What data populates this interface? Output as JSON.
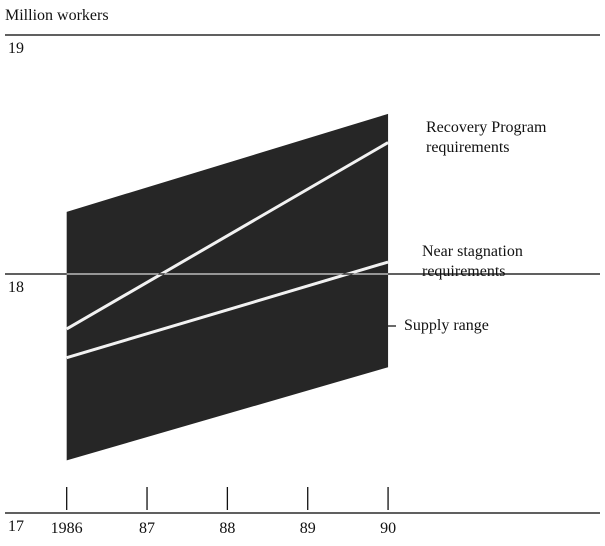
{
  "chart_data": {
    "type": "line",
    "ylabel": "Million workers",
    "x": [
      1986,
      1990
    ],
    "xlim": [
      1985.17,
      1992.7
    ],
    "xticks": [
      1986,
      {
        "value": 1987,
        "label": "87"
      },
      {
        "value": 1988,
        "label": "88"
      },
      {
        "value": 1989,
        "label": "89"
      },
      {
        "value": 1990,
        "label": "90"
      }
    ],
    "ylim": [
      17,
      19
    ],
    "yticks": [
      17,
      18,
      19
    ],
    "grid": true,
    "band": {
      "name": "Supply range",
      "color": "#262626",
      "upper": [
        18.26,
        18.67
      ],
      "lower": [
        17.22,
        17.61
      ]
    },
    "series": [
      {
        "name": "Recovery Program requirements",
        "color": "#f2f2f2",
        "values": [
          17.77,
          18.55
        ]
      },
      {
        "name": "Near stagnation requirements",
        "color": "#f2f2f2",
        "values": [
          17.65,
          18.05
        ]
      }
    ]
  }
}
